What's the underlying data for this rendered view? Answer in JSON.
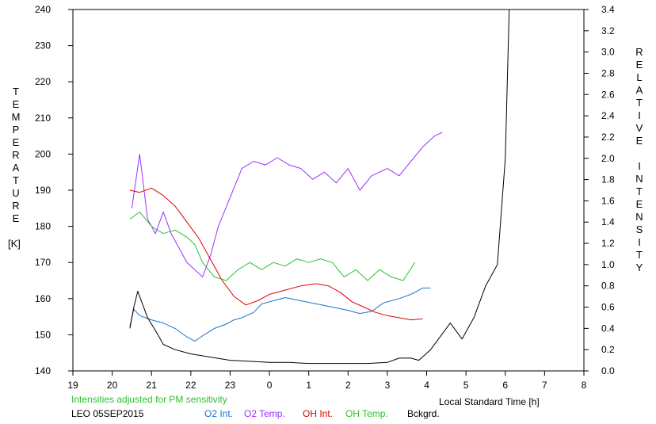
{
  "chart_data": {
    "type": "line",
    "left_axis_label": "TEMPERATURE",
    "left_axis_unit": "[K]",
    "right_axis_label": "RELATIVE INTENSITY",
    "x_axis_label": "Local Standard Time [h]",
    "note": "Intensities adjusted for PM sensitivity",
    "station_date": "LEO 05SEP2015",
    "left_ylim": [
      140,
      240
    ],
    "right_ylim": [
      0.0,
      3.4
    ],
    "x_ticks": [
      "19",
      "20",
      "21",
      "22",
      "23",
      "0",
      "1",
      "2",
      "3",
      "4",
      "5",
      "6",
      "7",
      "8"
    ],
    "left_y_ticks": [
      "140",
      "150",
      "160",
      "170",
      "180",
      "190",
      "200",
      "210",
      "220",
      "230",
      "240"
    ],
    "right_y_ticks": [
      "0.0",
      "0.2",
      "0.4",
      "0.6",
      "0.8",
      "1.0",
      "1.2",
      "1.4",
      "1.6",
      "1.8",
      "2.0",
      "2.2",
      "2.4",
      "2.6",
      "2.8",
      "3.0",
      "3.2",
      "3.4"
    ],
    "series": [
      {
        "name": "O2 Int.",
        "color": "#1874cd",
        "axis": "right",
        "points": [
          [
            20.45,
            0.42
          ],
          [
            20.55,
            0.58
          ],
          [
            20.7,
            0.52
          ],
          [
            21.0,
            0.48
          ],
          [
            21.3,
            0.45
          ],
          [
            21.6,
            0.4
          ],
          [
            21.9,
            0.32
          ],
          [
            22.1,
            0.28
          ],
          [
            22.3,
            0.33
          ],
          [
            22.6,
            0.4
          ],
          [
            22.9,
            0.44
          ],
          [
            23.1,
            0.48
          ],
          [
            23.3,
            0.5
          ],
          [
            23.6,
            0.55
          ],
          [
            23.8,
            0.63
          ],
          [
            24.1,
            0.66
          ],
          [
            24.4,
            0.69
          ],
          [
            24.8,
            0.66
          ],
          [
            25.2,
            0.63
          ],
          [
            25.6,
            0.6
          ],
          [
            26.0,
            0.57
          ],
          [
            26.3,
            0.54
          ],
          [
            26.6,
            0.56
          ],
          [
            26.9,
            0.64
          ],
          [
            27.3,
            0.68
          ],
          [
            27.6,
            0.72
          ],
          [
            27.9,
            0.78
          ],
          [
            28.1,
            0.78
          ]
        ]
      },
      {
        "name": "O2 Temp.",
        "color": "#9b30ff",
        "axis": "left",
        "points": [
          [
            20.5,
            185
          ],
          [
            20.7,
            200
          ],
          [
            20.9,
            182
          ],
          [
            21.1,
            178
          ],
          [
            21.3,
            184
          ],
          [
            21.5,
            178
          ],
          [
            21.7,
            174
          ],
          [
            21.9,
            170
          ],
          [
            22.1,
            168
          ],
          [
            22.3,
            166
          ],
          [
            22.5,
            172
          ],
          [
            22.7,
            180
          ],
          [
            23.0,
            188
          ],
          [
            23.3,
            196
          ],
          [
            23.6,
            198
          ],
          [
            23.9,
            197
          ],
          [
            24.2,
            199
          ],
          [
            24.5,
            197
          ],
          [
            24.8,
            196
          ],
          [
            25.1,
            193
          ],
          [
            25.4,
            195
          ],
          [
            25.7,
            192
          ],
          [
            26.0,
            196
          ],
          [
            26.3,
            190
          ],
          [
            26.6,
            194
          ],
          [
            27.0,
            196
          ],
          [
            27.3,
            194
          ],
          [
            27.6,
            198
          ],
          [
            27.9,
            202
          ],
          [
            28.2,
            205
          ],
          [
            28.4,
            206
          ]
        ]
      },
      {
        "name": "OH Int.",
        "color": "#e00000",
        "axis": "right",
        "points": [
          [
            20.45,
            1.7
          ],
          [
            20.7,
            1.68
          ],
          [
            21.0,
            1.72
          ],
          [
            21.3,
            1.65
          ],
          [
            21.6,
            1.55
          ],
          [
            21.9,
            1.4
          ],
          [
            22.2,
            1.25
          ],
          [
            22.5,
            1.05
          ],
          [
            22.8,
            0.85
          ],
          [
            23.1,
            0.7
          ],
          [
            23.4,
            0.62
          ],
          [
            23.7,
            0.66
          ],
          [
            24.0,
            0.72
          ],
          [
            24.4,
            0.76
          ],
          [
            24.8,
            0.8
          ],
          [
            25.2,
            0.82
          ],
          [
            25.5,
            0.8
          ],
          [
            25.8,
            0.74
          ],
          [
            26.1,
            0.65
          ],
          [
            26.4,
            0.6
          ],
          [
            26.7,
            0.55
          ],
          [
            27.0,
            0.52
          ],
          [
            27.3,
            0.5
          ],
          [
            27.6,
            0.48
          ],
          [
            27.9,
            0.49
          ]
        ]
      },
      {
        "name": "OH Temp.",
        "color": "#30c030",
        "axis": "left",
        "points": [
          [
            20.45,
            182
          ],
          [
            20.7,
            184
          ],
          [
            21.0,
            180
          ],
          [
            21.3,
            178
          ],
          [
            21.6,
            179
          ],
          [
            21.9,
            177
          ],
          [
            22.1,
            175
          ],
          [
            22.3,
            170
          ],
          [
            22.6,
            166
          ],
          [
            22.9,
            165
          ],
          [
            23.2,
            168
          ],
          [
            23.5,
            170
          ],
          [
            23.8,
            168
          ],
          [
            24.1,
            170
          ],
          [
            24.4,
            169
          ],
          [
            24.7,
            171
          ],
          [
            25.0,
            170
          ],
          [
            25.3,
            171
          ],
          [
            25.6,
            170
          ],
          [
            25.9,
            166
          ],
          [
            26.2,
            168
          ],
          [
            26.5,
            165
          ],
          [
            26.8,
            168
          ],
          [
            27.1,
            166
          ],
          [
            27.4,
            165
          ],
          [
            27.7,
            170
          ]
        ]
      },
      {
        "name": "Bckgrd.",
        "color": "#000000",
        "axis": "right",
        "points": [
          [
            20.45,
            0.4
          ],
          [
            20.55,
            0.6
          ],
          [
            20.65,
            0.75
          ],
          [
            20.75,
            0.65
          ],
          [
            20.9,
            0.5
          ],
          [
            21.1,
            0.38
          ],
          [
            21.3,
            0.25
          ],
          [
            21.6,
            0.2
          ],
          [
            22.0,
            0.16
          ],
          [
            22.5,
            0.13
          ],
          [
            23.0,
            0.1
          ],
          [
            23.5,
            0.09
          ],
          [
            24.0,
            0.08
          ],
          [
            24.5,
            0.08
          ],
          [
            25.0,
            0.07
          ],
          [
            25.5,
            0.07
          ],
          [
            26.0,
            0.07
          ],
          [
            26.5,
            0.07
          ],
          [
            27.0,
            0.08
          ],
          [
            27.3,
            0.12
          ],
          [
            27.6,
            0.12
          ],
          [
            27.8,
            0.1
          ],
          [
            28.1,
            0.2
          ],
          [
            28.4,
            0.35
          ],
          [
            28.6,
            0.45
          ],
          [
            28.9,
            0.3
          ],
          [
            29.2,
            0.5
          ],
          [
            29.5,
            0.8
          ],
          [
            29.8,
            1.0
          ],
          [
            30.0,
            2.0
          ],
          [
            30.1,
            3.4
          ]
        ]
      }
    ]
  }
}
